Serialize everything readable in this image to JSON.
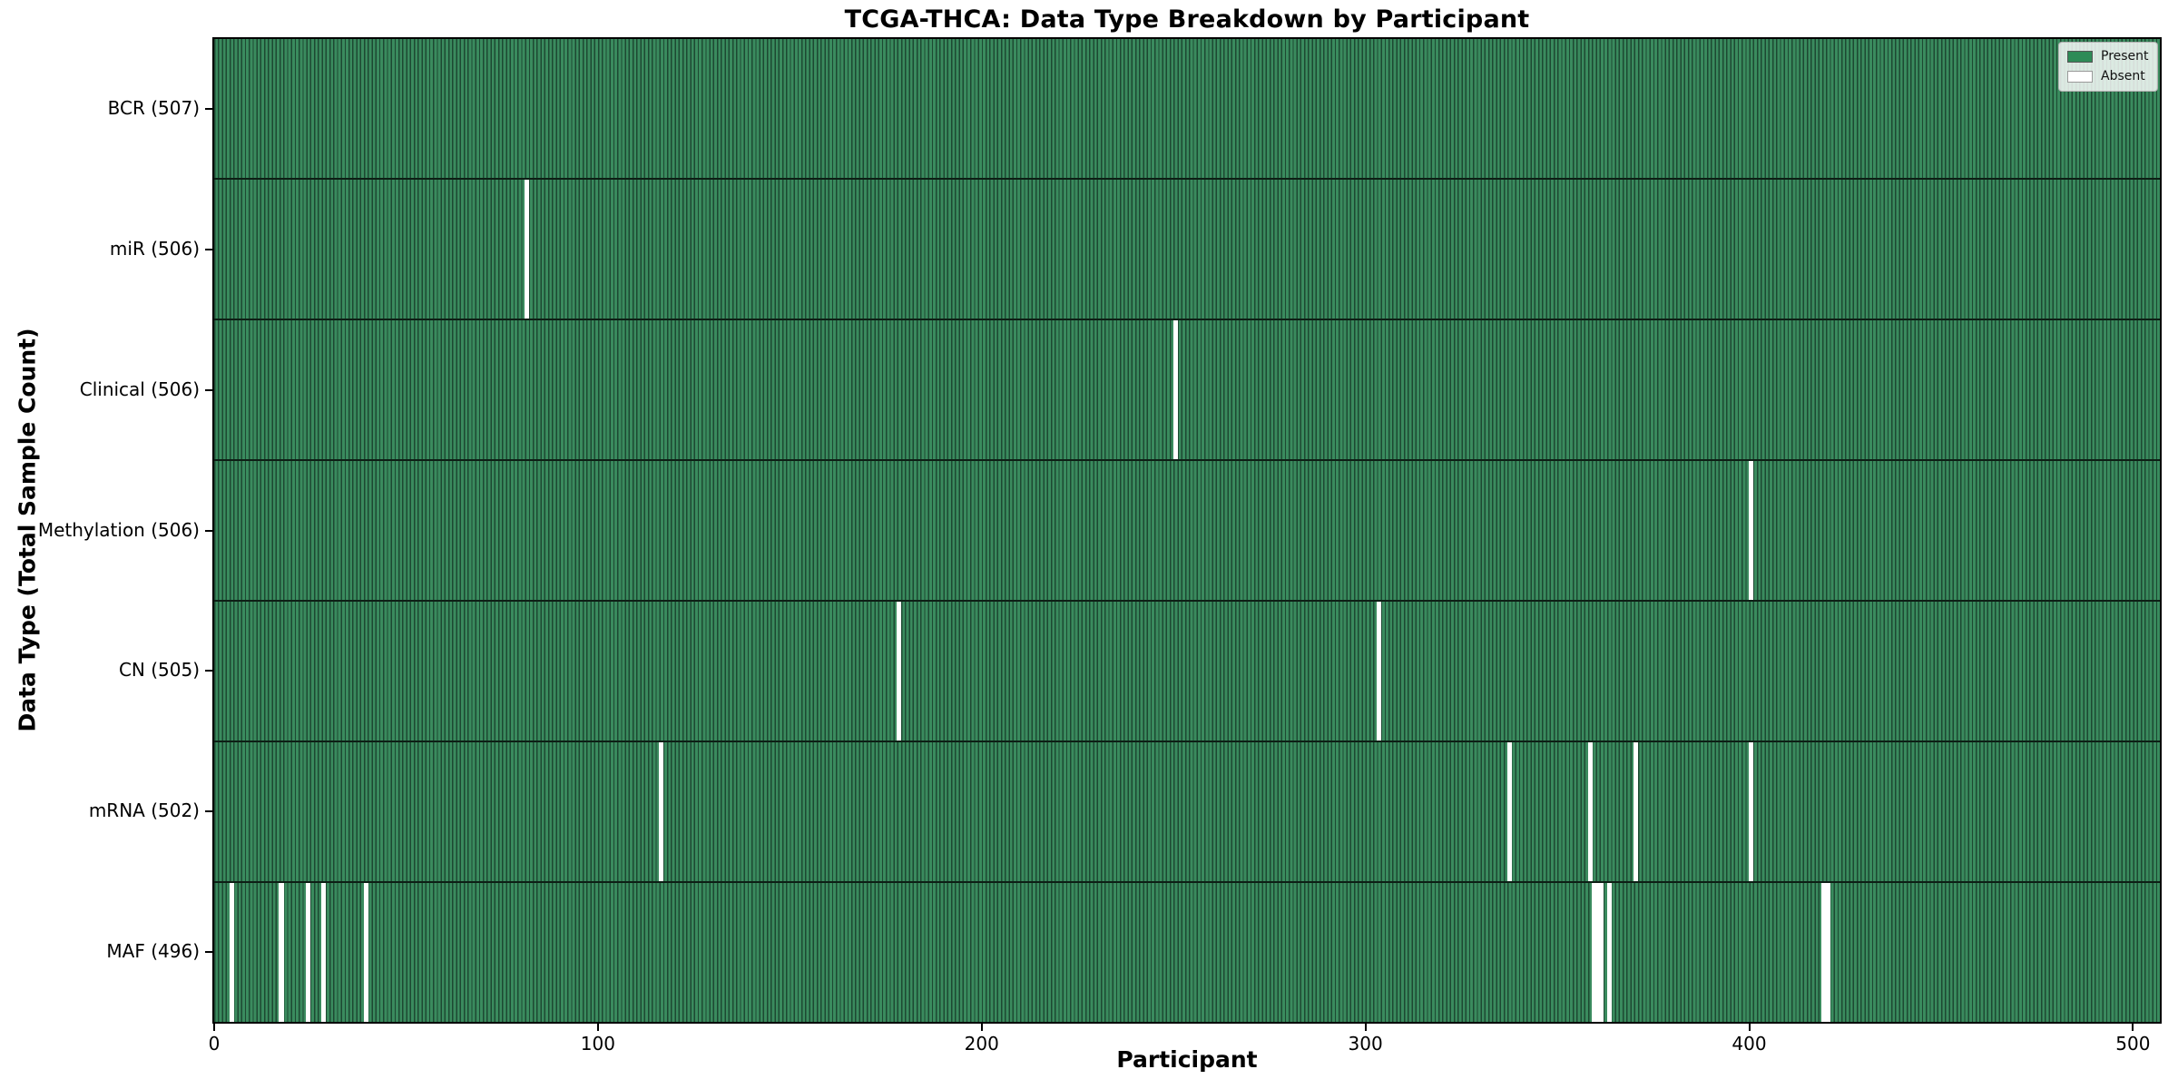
{
  "chart_data": {
    "type": "heatmap",
    "title": "TCGA-THCA: Data Type Breakdown by Participant",
    "xlabel": "Participant",
    "ylabel": "Data Type (Total Sample Count)",
    "x_ticks": [
      0,
      100,
      200,
      300,
      400,
      500
    ],
    "xlim": [
      0,
      507
    ],
    "n_participants": 507,
    "grid": false,
    "legend_position": "upper-right-inside",
    "legend": [
      {
        "label": "Present",
        "color": "#2e8b57"
      },
      {
        "label": "Absent",
        "color": "#ffffff"
      }
    ],
    "colors": {
      "present_fill": "#3a8b5e",
      "bar_edge": "#1d4832",
      "row_divider": "#0d1f15",
      "frame": "#000000",
      "absent": "#ffffff"
    },
    "rows": [
      {
        "label": "BCR (507)",
        "name": "BCR",
        "total": 507,
        "absent_participants": []
      },
      {
        "label": "miR (506)",
        "name": "miR",
        "total": 506,
        "absent_participants": [
          81
        ]
      },
      {
        "label": "Clinical (506)",
        "name": "Clinical",
        "total": 506,
        "absent_participants": [
          250
        ]
      },
      {
        "label": "Methylation (506)",
        "name": "Methylation",
        "total": 506,
        "absent_participants": [
          400
        ]
      },
      {
        "label": "CN (505)",
        "name": "CN",
        "total": 505,
        "absent_participants": [
          178,
          303
        ]
      },
      {
        "label": "mRNA (502)",
        "name": "mRNA",
        "total": 502,
        "absent_participants": [
          116,
          337,
          358,
          370,
          400
        ]
      },
      {
        "label": "MAF (496)",
        "name": "MAF",
        "total": 496,
        "absent_participants": [
          4,
          17,
          24,
          28,
          39,
          359,
          360,
          361,
          363,
          419,
          420
        ]
      }
    ]
  }
}
